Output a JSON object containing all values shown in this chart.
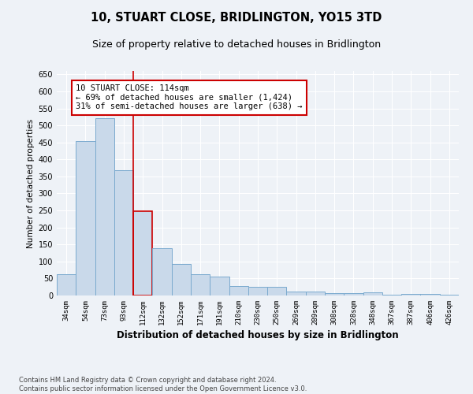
{
  "title": "10, STUART CLOSE, BRIDLINGTON, YO15 3TD",
  "subtitle": "Size of property relative to detached houses in Bridlington",
  "xlabel": "Distribution of detached houses by size in Bridlington",
  "ylabel": "Number of detached properties",
  "categories": [
    "34sqm",
    "54sqm",
    "73sqm",
    "93sqm",
    "112sqm",
    "132sqm",
    "152sqm",
    "171sqm",
    "191sqm",
    "210sqm",
    "230sqm",
    "250sqm",
    "269sqm",
    "289sqm",
    "308sqm",
    "328sqm",
    "348sqm",
    "367sqm",
    "387sqm",
    "406sqm",
    "426sqm"
  ],
  "values": [
    62,
    455,
    522,
    368,
    248,
    140,
    92,
    62,
    55,
    28,
    26,
    26,
    11,
    12,
    7,
    6,
    10,
    3,
    4,
    5,
    3
  ],
  "bar_color": "#c9d9ea",
  "bar_edge_color": "#7aaace",
  "highlight_index": 4,
  "vline_color": "#cc0000",
  "annotation_box_color": "#cc0000",
  "annotation_text": "10 STUART CLOSE: 114sqm\n← 69% of detached houses are smaller (1,424)\n31% of semi-detached houses are larger (638) →",
  "ylim": [
    0,
    660
  ],
  "yticks": [
    0,
    50,
    100,
    150,
    200,
    250,
    300,
    350,
    400,
    450,
    500,
    550,
    600,
    650
  ],
  "background_color": "#eef2f7",
  "plot_background": "#eef2f7",
  "footer": "Contains HM Land Registry data © Crown copyright and database right 2024.\nContains public sector information licensed under the Open Government Licence v3.0.",
  "title_fontsize": 10.5,
  "subtitle_fontsize": 9,
  "xlabel_fontsize": 8.5,
  "ylabel_fontsize": 7.5,
  "annotation_fontsize": 7.5,
  "footer_fontsize": 6.0
}
